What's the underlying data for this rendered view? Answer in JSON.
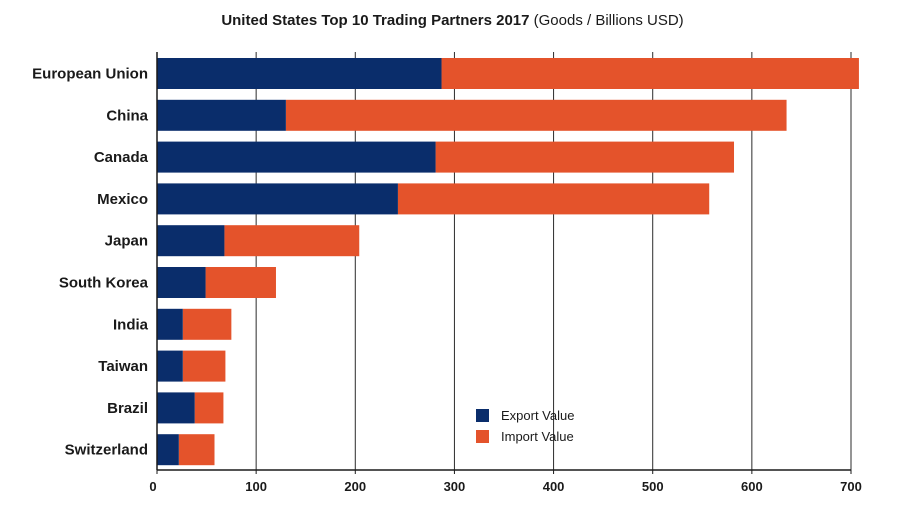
{
  "title": {
    "main": "United States Top 10 Trading Partners 2017",
    "sub": " (Goods / Billions USD)"
  },
  "colors": {
    "export": "#0a2d6b",
    "import": "#e4532b",
    "grid": "#2b2b2b",
    "axis": "#1a1a1a"
  },
  "chart_data": {
    "type": "bar",
    "orientation": "horizontal",
    "stacked": true,
    "title": "United States Top 10 Trading Partners 2017 (Goods / Billions USD)",
    "categories": [
      "European Union",
      "China",
      "Canada",
      "Mexico",
      "Japan",
      "South Korea",
      "India",
      "Taiwan",
      "Brazil",
      "Switzerland"
    ],
    "series": [
      {
        "name": "Export Value",
        "values": [
          287,
          130,
          281,
          243,
          68,
          49,
          26,
          26,
          38,
          22
        ]
      },
      {
        "name": "Import Value",
        "values": [
          421,
          505,
          301,
          314,
          136,
          71,
          49,
          43,
          29,
          36
        ]
      }
    ],
    "xlim": [
      0,
      700
    ],
    "xticks": [
      0,
      100,
      200,
      300,
      400,
      500,
      600,
      700
    ],
    "grid": "vertical",
    "legend": "bottom-right"
  }
}
